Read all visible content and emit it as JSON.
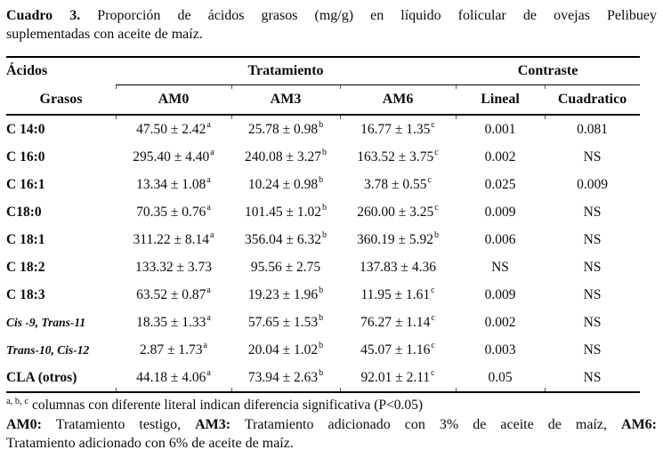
{
  "page": {
    "background": "#ffffff",
    "text_color": "#0c0c0c"
  },
  "caption": {
    "label": "Cuadro 3.",
    "line1_rest": "Proporción de ácidos grasos (mg/g) en líquido folicular de ovejas Pelibuey",
    "line2": "suplementadas con aceite de maíz."
  },
  "table": {
    "header": {
      "col1_top": "Ácidos",
      "col1_bottom": "Grasos",
      "treatment_group": "Tratamiento",
      "contrast_group": "Contraste",
      "treatment_cols": [
        "AM0",
        "AM3",
        "AM6"
      ],
      "contrast_cols": [
        "Lineal",
        "Cuadratico"
      ]
    },
    "rows": [
      {
        "label": "C 14:0",
        "iso": false,
        "cells": [
          {
            "v": "47.50 ± 2.42",
            "s": "a"
          },
          {
            "v": "25.78 ± 0.98",
            "s": "b"
          },
          {
            "v": "16.77 ± 1.35",
            "s": "c"
          }
        ],
        "lineal": "0.001",
        "cuadratico": "0.081"
      },
      {
        "label": "C 16:0",
        "iso": false,
        "cells": [
          {
            "v": "295.40 ± 4.40",
            "s": "a"
          },
          {
            "v": "240.08 ± 3.27",
            "s": "b"
          },
          {
            "v": "163.52 ± 3.75",
            "s": "c"
          }
        ],
        "lineal": "0.002",
        "cuadratico": "NS"
      },
      {
        "label": "C 16:1",
        "iso": false,
        "cells": [
          {
            "v": "13.34 ± 1.08",
            "s": "a"
          },
          {
            "v": "10.24 ± 0.98",
            "s": "b"
          },
          {
            "v": "3.78 ± 0.55",
            "s": "c"
          }
        ],
        "lineal": "0.025",
        "cuadratico": "0.009"
      },
      {
        "label": "C18:0",
        "iso": false,
        "cells": [
          {
            "v": "70.35 ± 0.76",
            "s": "a"
          },
          {
            "v": "101.45 ± 1.02",
            "s": "b"
          },
          {
            "v": "260.00 ± 3.25",
            "s": "c"
          }
        ],
        "lineal": "0.009",
        "cuadratico": "NS"
      },
      {
        "label": "C 18:1",
        "iso": false,
        "cells": [
          {
            "v": "311.22 ± 8.14",
            "s": "a"
          },
          {
            "v": "356.04 ± 6.32",
            "s": "b"
          },
          {
            "v": "360.19 ± 5.92",
            "s": "b"
          }
        ],
        "lineal": "0.006",
        "cuadratico": "NS"
      },
      {
        "label": "C 18:2",
        "iso": false,
        "cells": [
          {
            "v": "133.32 ± 3.73",
            "s": ""
          },
          {
            "v": "95.56 ± 2.75",
            "s": ""
          },
          {
            "v": "137.83 ± 4.36",
            "s": ""
          }
        ],
        "lineal": "NS",
        "cuadratico": "NS"
      },
      {
        "label": "C 18:3",
        "iso": false,
        "cells": [
          {
            "v": "63.52 ± 0.87",
            "s": "a"
          },
          {
            "v": "19.23 ± 1.96",
            "s": "b"
          },
          {
            "v": "11.95 ± 1.61",
            "s": "c"
          }
        ],
        "lineal": "0.009",
        "cuadratico": "NS"
      },
      {
        "label": "Cis -9, Trans-11",
        "iso": true,
        "cells": [
          {
            "v": "18.35 ± 1.33",
            "s": "a"
          },
          {
            "v": "57.65 ± 1.53",
            "s": "b"
          },
          {
            "v": "76.27 ± 1.14",
            "s": "c"
          }
        ],
        "lineal": "0.002",
        "cuadratico": "NS"
      },
      {
        "label": "Trans-10, Cis-12",
        "iso": true,
        "cells": [
          {
            "v": "2.87 ± 1.73",
            "s": "a"
          },
          {
            "v": "20.04 ± 1.02",
            "s": "b"
          },
          {
            "v": "45.07 ± 1.16",
            "s": "c"
          }
        ],
        "lineal": "0.003",
        "cuadratico": "NS"
      },
      {
        "label": "CLA (otros)",
        "iso": false,
        "cells": [
          {
            "v": "44.18 ± 4.06",
            "s": "a"
          },
          {
            "v": "73.94 ± 2.63",
            "s": "b"
          },
          {
            "v": "92.01 ± 2.11",
            "s": "c"
          }
        ],
        "lineal": "0.05",
        "cuadratico": "NS"
      }
    ]
  },
  "footnotes": {
    "sig": {
      "sup": "a, b, c",
      "text": " columnas con diferente literal indican diferencia significativa (P<0.05)"
    },
    "legend": {
      "am0_label": "AM0:",
      "seg1": " Tratamiento testigo, ",
      "am3_label": "AM3:",
      "seg2": " Tratamiento adicionado con 3% de aceite de maíz, ",
      "am6_label": "AM6:",
      "line2": "Tratamiento adicionado con 6% de aceite de maíz."
    }
  }
}
